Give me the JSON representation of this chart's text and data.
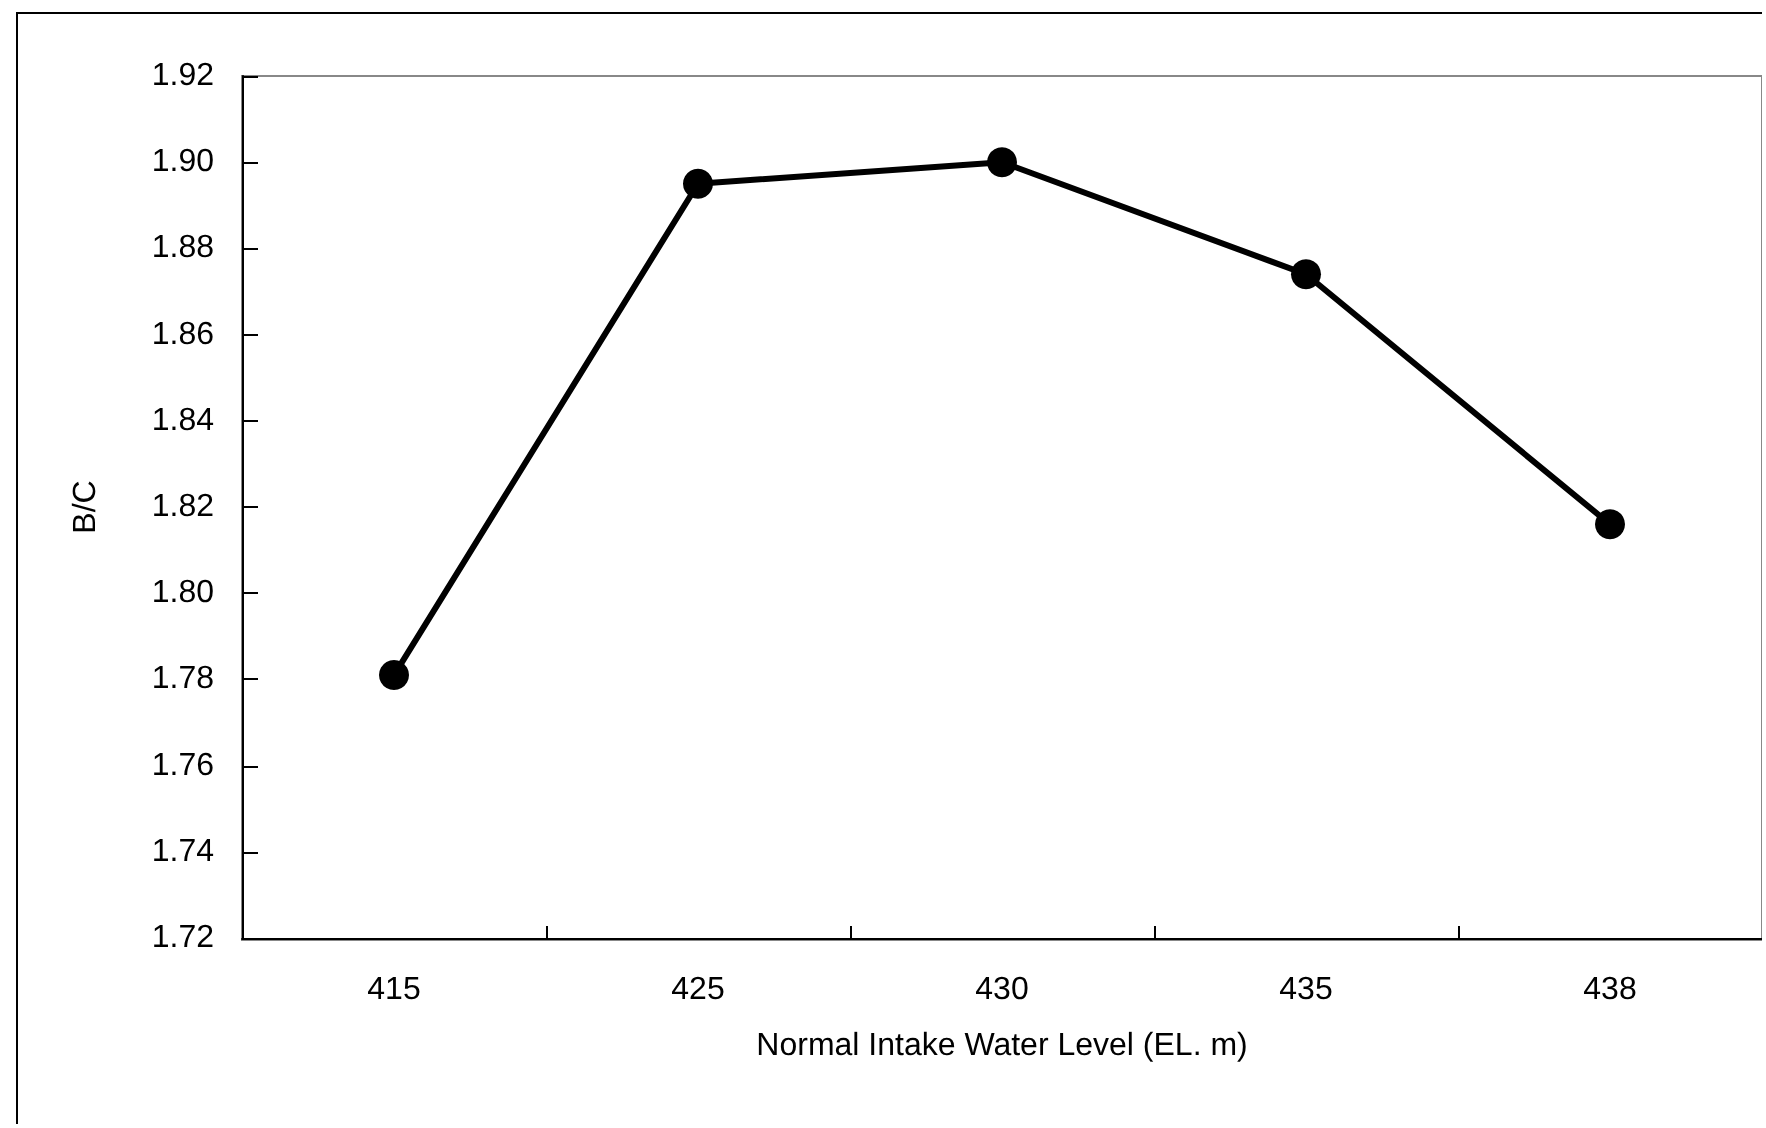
{
  "chart_data": {
    "type": "line",
    "xlabel": "Normal Intake Water Level (EL. m)",
    "ylabel": "B/C",
    "categories": [
      "415",
      "425",
      "430",
      "435",
      "438"
    ],
    "series": [
      {
        "color": "#000000",
        "values": [
          1.781,
          1.895,
          1.9,
          1.874,
          1.816
        ]
      }
    ],
    "ylim": [
      1.72,
      1.92
    ],
    "yticks": [
      1.72,
      1.74,
      1.76,
      1.78,
      {
        "value": 1.8,
        "label": "1.80"
      },
      1.82,
      1.84,
      1.86,
      1.88,
      {
        "value": 1.9,
        "label": "1.90"
      },
      1.92
    ],
    "grid": false,
    "marker": "circle",
    "line_style": "solid"
  }
}
